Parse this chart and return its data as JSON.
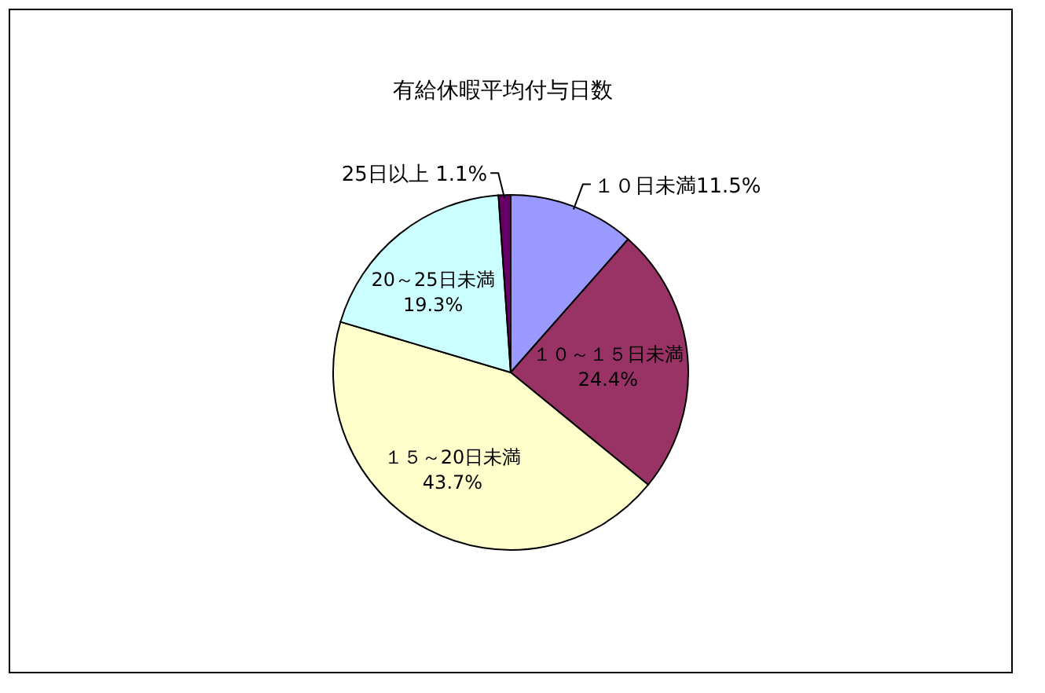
{
  "chart_data": {
    "type": "pie",
    "title": "有給休暇平均付与日数",
    "categories": [
      "１０日未満",
      "１０～１５日未満",
      "１５～20日未満",
      "20～25日未満",
      "25日以上"
    ],
    "values": [
      11.5,
      24.4,
      43.7,
      19.3,
      1.1
    ],
    "value_labels": [
      "11.5%",
      "24.4%",
      "43.7%",
      "19.3%",
      "1.1%"
    ],
    "colors": [
      "#9999ff",
      "#993366",
      "#ffffcc",
      "#ccffff",
      "#660066"
    ]
  }
}
